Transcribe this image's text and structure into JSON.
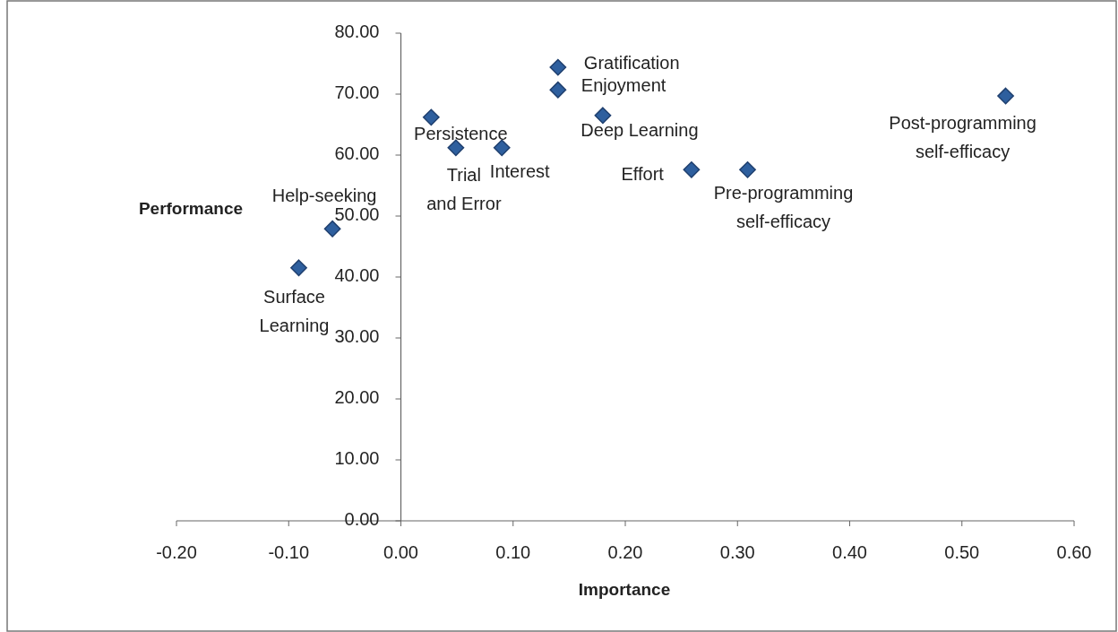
{
  "chart_data": {
    "type": "scatter",
    "xlabel": "Importance",
    "ylabel": "Performance",
    "x": [
      -0.091,
      -0.061,
      0.027,
      0.049,
      0.09,
      0.14,
      0.14,
      0.18,
      0.259,
      0.309,
      0.539
    ],
    "series": [
      {
        "color": "#2e5f9e",
        "values": [
          41.5,
          47.9,
          66.2,
          61.2,
          61.2,
          74.4,
          70.7,
          66.5,
          57.6,
          57.6,
          69.7
        ]
      }
    ],
    "annotations": [
      {
        "text": "Surface Learning",
        "x": -0.091,
        "y": 41.5
      },
      {
        "text": "Help-seeking",
        "x": -0.061,
        "y": 47.9
      },
      {
        "text": "Persistence",
        "x": 0.027,
        "y": 66.2
      },
      {
        "text": "Trial and Error",
        "x": 0.049,
        "y": 61.2
      },
      {
        "text": "Interest",
        "x": 0.09,
        "y": 61.2
      },
      {
        "text": "Gratification",
        "x": 0.14,
        "y": 74.4
      },
      {
        "text": "Enjoyment",
        "x": 0.14,
        "y": 70.7
      },
      {
        "text": "Deep Learning",
        "x": 0.18,
        "y": 66.5
      },
      {
        "text": "Effort",
        "x": 0.259,
        "y": 57.6
      },
      {
        "text": "Pre-programming self-efficacy",
        "x": 0.309,
        "y": 57.6
      },
      {
        "text": "Post-programming self-efficacy",
        "x": 0.539,
        "y": 69.7
      }
    ],
    "xlim": [
      -0.2,
      0.6
    ],
    "ylim": [
      0,
      80
    ],
    "xticks": [
      {
        "value": -0.2,
        "label": "-0.20"
      },
      {
        "value": -0.1,
        "label": "-0.10"
      },
      {
        "value": 0,
        "label": "0.00"
      },
      {
        "value": 0.1,
        "label": "0.10"
      },
      {
        "value": 0.2,
        "label": "0.20"
      },
      {
        "value": 0.3,
        "label": "0.30"
      },
      {
        "value": 0.4,
        "label": "0.40"
      },
      {
        "value": 0.5,
        "label": "0.50"
      },
      {
        "value": 0.6,
        "label": "0.60"
      }
    ],
    "yticks": [
      {
        "value": 0,
        "label": "0.00"
      },
      {
        "value": 10,
        "label": "10.00"
      },
      {
        "value": 20,
        "label": "20.00"
      },
      {
        "value": 30,
        "label": "30.00"
      },
      {
        "value": 40,
        "label": "40.00"
      },
      {
        "value": 50,
        "label": "50.00"
      },
      {
        "value": 60,
        "label": "60.00"
      },
      {
        "value": 70,
        "label": "70.00"
      },
      {
        "value": 80,
        "label": "80.00"
      }
    ],
    "marker": "diamond",
    "grid": false
  }
}
